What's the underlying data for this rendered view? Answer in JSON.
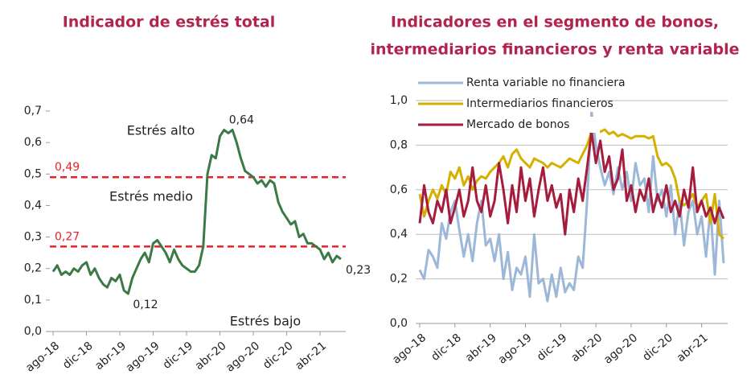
{
  "chart_data": [
    {
      "type": "line",
      "title": "Indicador de estrés total",
      "categories": [
        "ago-18",
        null,
        null,
        null,
        null,
        null,
        null,
        null,
        "dic-18",
        null,
        null,
        null,
        null,
        null,
        null,
        null,
        "abr-19",
        null,
        null,
        null,
        null,
        null,
        null,
        null,
        "ago-19",
        null,
        null,
        null,
        null,
        null,
        null,
        null,
        "dic-19",
        null,
        null,
        null,
        null,
        null,
        null,
        null,
        "abr-20",
        null,
        null,
        null,
        null,
        null,
        null,
        null,
        "ago-20",
        null,
        null,
        null,
        null,
        null,
        null,
        null,
        "dic-20",
        null,
        null,
        null,
        null,
        null,
        null,
        null,
        "abr-21",
        null,
        null,
        null,
        null,
        null
      ],
      "values": [
        0.19,
        0.21,
        0.18,
        0.19,
        0.18,
        0.2,
        0.19,
        0.21,
        0.22,
        0.18,
        0.2,
        0.17,
        0.15,
        0.14,
        0.17,
        0.16,
        0.18,
        0.13,
        0.12,
        0.17,
        0.2,
        0.23,
        0.25,
        0.22,
        0.28,
        0.29,
        0.27,
        0.25,
        0.22,
        0.26,
        0.23,
        0.21,
        0.2,
        0.19,
        0.19,
        0.21,
        0.27,
        0.5,
        0.56,
        0.55,
        0.62,
        0.64,
        0.63,
        0.64,
        0.6,
        0.55,
        0.51,
        0.5,
        0.49,
        0.47,
        0.48,
        0.46,
        0.48,
        0.47,
        0.41,
        0.38,
        0.36,
        0.34,
        0.35,
        0.3,
        0.31,
        0.28,
        0.28,
        0.27,
        0.26,
        0.23,
        0.25,
        0.22,
        0.24,
        0.23
      ],
      "value_labels": [
        null,
        null,
        null,
        null,
        null,
        null,
        null,
        null,
        null,
        null,
        null,
        null,
        null,
        null,
        null,
        null,
        null,
        null,
        "0,12",
        null,
        null,
        null,
        null,
        null,
        null,
        null,
        null,
        null,
        null,
        null,
        null,
        null,
        null,
        null,
        null,
        null,
        null,
        null,
        null,
        null,
        null,
        "0,64",
        null,
        null,
        null,
        null,
        null,
        null,
        null,
        null,
        null,
        null,
        null,
        null,
        null,
        null,
        null,
        null,
        null,
        null,
        null,
        null,
        null,
        null,
        null,
        null,
        null,
        null,
        null,
        "0,23"
      ],
      "color": "#3b7a47",
      "ylim": [
        0,
        0.7
      ],
      "yticks": [
        {
          "value": 0,
          "label": "0,0"
        },
        {
          "value": 0.1,
          "label": "0,1"
        },
        {
          "value": 0.2,
          "label": "0,2"
        },
        {
          "value": 0.3,
          "label": "0,3"
        },
        {
          "value": 0.4,
          "label": "0,4"
        },
        {
          "value": 0.5,
          "label": "0,5"
        },
        {
          "value": 0.6,
          "label": "0,6"
        },
        {
          "value": 0.7,
          "label": "0,7"
        }
      ],
      "reference_lines": [
        {
          "value": 0.49,
          "label": "0,49"
        },
        {
          "value": 0.27,
          "label": "0,27"
        }
      ],
      "reference_color": "#e8202a",
      "annotations": [
        "Estrés alto",
        "Estrés medio",
        "Estrés bajo"
      ],
      "grid": false
    },
    {
      "type": "line",
      "title": [
        "Indicadores en el segmento de bonos,",
        "intermediarios financieros y renta variable"
      ],
      "categories": [
        "ago-18",
        null,
        null,
        null,
        null,
        null,
        null,
        null,
        "dic-18",
        null,
        null,
        null,
        null,
        null,
        null,
        null,
        "abr-19",
        null,
        null,
        null,
        null,
        null,
        null,
        null,
        "ago-19",
        null,
        null,
        null,
        null,
        null,
        null,
        null,
        "dic-19",
        null,
        null,
        null,
        null,
        null,
        null,
        null,
        "abr-20",
        null,
        null,
        null,
        null,
        null,
        null,
        null,
        "ago-20",
        null,
        null,
        null,
        null,
        null,
        null,
        null,
        "dic-20",
        null,
        null,
        null,
        null,
        null,
        null,
        null,
        "abr-21",
        null,
        null,
        null,
        null,
        null
      ],
      "series": [
        {
          "name": "Renta variable no financiera",
          "color": "#9db7d9",
          "values": [
            0.24,
            0.2,
            0.33,
            0.3,
            0.25,
            0.45,
            0.38,
            0.5,
            0.55,
            0.42,
            0.3,
            0.4,
            0.28,
            0.45,
            0.55,
            0.35,
            0.38,
            0.28,
            0.4,
            0.2,
            0.32,
            0.15,
            0.25,
            0.22,
            0.3,
            0.12,
            0.4,
            0.18,
            0.2,
            0.1,
            0.22,
            0.12,
            0.25,
            0.14,
            0.18,
            0.15,
            0.3,
            0.25,
            0.55,
            0.95,
            0.8,
            0.7,
            0.62,
            0.68,
            0.58,
            0.7,
            0.6,
            0.68,
            0.55,
            0.72,
            0.62,
            0.65,
            0.5,
            0.75,
            0.55,
            0.6,
            0.48,
            0.62,
            0.4,
            0.55,
            0.35,
            0.5,
            0.55,
            0.4,
            0.48,
            0.3,
            0.52,
            0.22,
            0.55,
            0.27
          ]
        },
        {
          "name": "Intermediarios financieros",
          "color": "#d4b000",
          "values": [
            0.58,
            0.48,
            0.55,
            0.6,
            0.56,
            0.62,
            0.58,
            0.68,
            0.65,
            0.7,
            0.62,
            0.66,
            0.6,
            0.64,
            0.66,
            0.65,
            0.68,
            0.7,
            0.72,
            0.75,
            0.7,
            0.76,
            0.78,
            0.74,
            0.72,
            0.7,
            0.74,
            0.73,
            0.72,
            0.7,
            0.72,
            0.71,
            0.7,
            0.72,
            0.74,
            0.73,
            0.72,
            0.76,
            0.8,
            0.86,
            0.87,
            0.86,
            0.87,
            0.85,
            0.86,
            0.84,
            0.85,
            0.84,
            0.83,
            0.84,
            0.84,
            0.84,
            0.83,
            0.84,
            0.75,
            0.71,
            0.72,
            0.7,
            0.65,
            0.55,
            0.53,
            0.55,
            0.58,
            0.52,
            0.55,
            0.58,
            0.45,
            0.58,
            0.4,
            0.38
          ]
        },
        {
          "name": "Mercado de bonos",
          "color": "#a51c3c",
          "values": [
            0.45,
            0.62,
            0.5,
            0.45,
            0.55,
            0.5,
            0.6,
            0.45,
            0.52,
            0.6,
            0.48,
            0.55,
            0.7,
            0.55,
            0.5,
            0.62,
            0.48,
            0.55,
            0.72,
            0.6,
            0.45,
            0.62,
            0.5,
            0.7,
            0.55,
            0.65,
            0.48,
            0.6,
            0.7,
            0.55,
            0.62,
            0.52,
            0.58,
            0.4,
            0.6,
            0.5,
            0.65,
            0.55,
            0.7,
            0.86,
            0.72,
            0.82,
            0.68,
            0.75,
            0.6,
            0.65,
            0.78,
            0.55,
            0.62,
            0.5,
            0.6,
            0.55,
            0.65,
            0.5,
            0.58,
            0.52,
            0.62,
            0.5,
            0.55,
            0.48,
            0.6,
            0.52,
            0.7,
            0.5,
            0.55,
            0.48,
            0.52,
            0.45,
            0.52,
            0.47
          ]
        }
      ],
      "ylim": [
        0,
        1
      ],
      "yticks": [
        {
          "value": 0,
          "label": "0,0"
        },
        {
          "value": 0.2,
          "label": "0,2"
        },
        {
          "value": 0.4,
          "label": "0,4"
        },
        {
          "value": 0.6,
          "label": "0,6"
        },
        {
          "value": 0.8,
          "label": "0,8"
        },
        {
          "value": 1,
          "label": "1,0"
        }
      ],
      "grid": true
    }
  ]
}
